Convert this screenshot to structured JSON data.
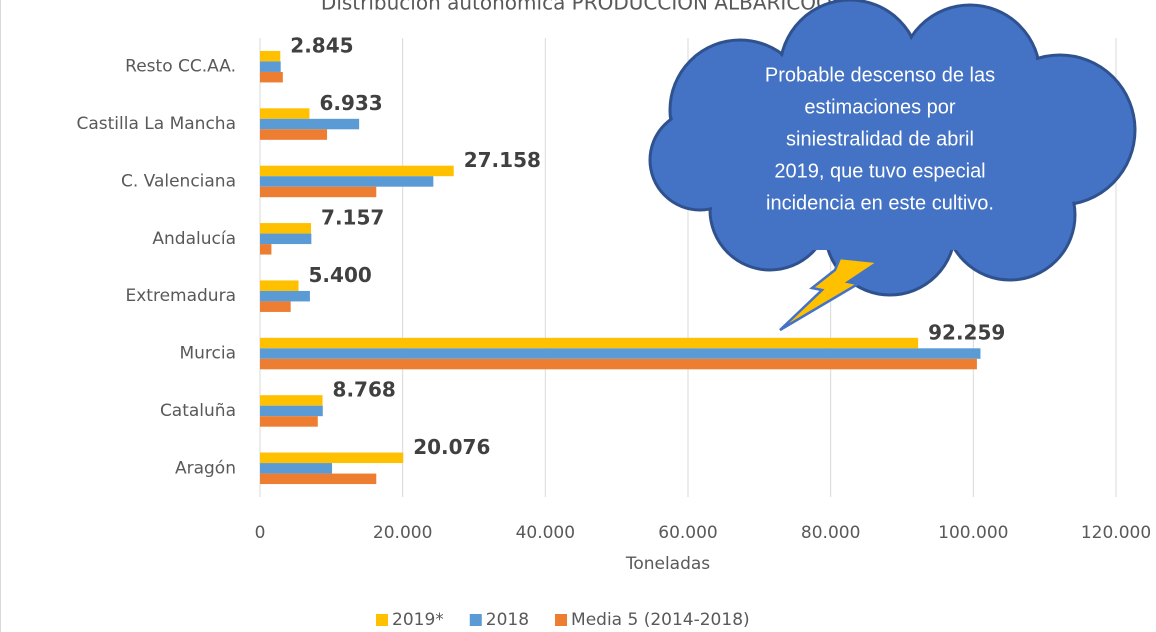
{
  "chart_data": {
    "type": "barh",
    "title": "Distribución autonómica PRODUCCIÓN ALBARICOQUE",
    "categories": [
      "Resto CC.AA.",
      "Castilla La Mancha",
      "C. Valenciana",
      "Andalucía",
      "Extremadura",
      "Murcia",
      "Cataluña",
      "Aragón"
    ],
    "series": [
      {
        "name": "2019*",
        "color": "#FFC000",
        "values": [
          2845,
          6933,
          27158,
          7157,
          5400,
          92259,
          8768,
          20076
        ],
        "value_labels": [
          "2.845",
          "6.933",
          "27.158",
          "7.157",
          "5.400",
          "92.259",
          "8.768",
          "20.076"
        ]
      },
      {
        "name": "2018",
        "color": "#5B9BD5",
        "values": [
          2900,
          13900,
          24300,
          7200,
          7000,
          101000,
          8800,
          10100
        ]
      },
      {
        "name": "Media 5 (2014-2018)",
        "color": "#ED7D31",
        "values": [
          3200,
          9400,
          16300,
          1600,
          4300,
          100500,
          8100,
          16300
        ]
      }
    ],
    "xlabel": "Toneladas",
    "xlim": [
      0,
      120000
    ],
    "xticks": [
      0,
      {
        "value": 20000,
        "label": "20.000"
      },
      {
        "value": 40000,
        "label": "40.000"
      },
      {
        "value": 60000,
        "label": "60.000"
      },
      {
        "value": 80000,
        "label": "80.000"
      },
      {
        "value": 100000,
        "label": "100.000"
      },
      {
        "value": 120000,
        "label": "120.000"
      }
    ],
    "grid": true,
    "legend": "bottom",
    "annotation": [
      "Probable descenso de las",
      "estimaciones por",
      "siniestralidad de abril",
      "2019, que tuvo especial",
      "incidencia en este cultivo."
    ]
  }
}
